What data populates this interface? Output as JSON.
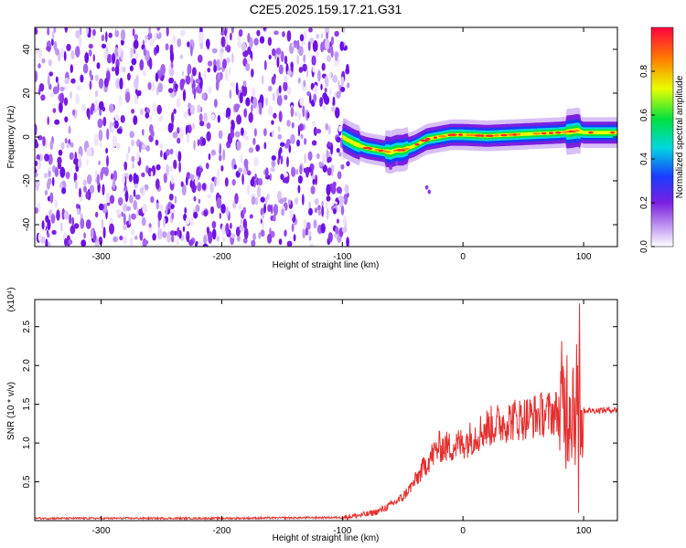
{
  "title": "C2E5.2025.159.17.21.G31",
  "colors": {
    "signal": "#e53030",
    "axis": "#000000",
    "noise": "#7a1fe0"
  },
  "chart_data": [
    {
      "type": "heatmap",
      "xlabel": "Height of straight line (km)",
      "ylabel": "Frequency (Hz)",
      "xlim": [
        -355,
        128
      ],
      "ylim": [
        -50,
        50
      ],
      "xticks": [
        -300,
        -200,
        -100,
        0,
        100
      ],
      "yticks": [
        -40,
        -20,
        0,
        20,
        40
      ],
      "colorbar": {
        "label": "Normalized spectral amplitude",
        "range": [
          0,
          1
        ],
        "ticks": [
          0.0,
          0.2,
          0.4,
          0.6,
          0.8
        ],
        "ticklabels": [
          "0.0",
          "0.2",
          "0.4",
          "0.6",
          "0.8"
        ]
      },
      "noise_region_x": [
        -355,
        -95
      ],
      "ridge": {
        "x": [
          -100,
          -90,
          -80,
          -70,
          -60,
          -55,
          -50,
          -40,
          -30,
          -20,
          -10,
          0,
          20,
          40,
          60,
          80,
          90,
          95,
          100,
          110,
          128
        ],
        "y": [
          0,
          -3,
          -5,
          -6,
          -7,
          -6,
          -6,
          -4,
          -1,
          0,
          1,
          1,
          0.5,
          1,
          1.5,
          2,
          2.5,
          3,
          2,
          2,
          2
        ]
      }
    },
    {
      "type": "line",
      "xlabel": "Height of straight line (km)",
      "ylabel": "SNR (10 * v/v)",
      "yscale_label": "(x10⁴)",
      "xlim": [
        -355,
        128
      ],
      "ylim": [
        0,
        2.85
      ],
      "xticks": [
        -300,
        -200,
        -100,
        0,
        100
      ],
      "yticks": [
        0.5,
        1.0,
        1.5,
        2.0,
        2.5
      ],
      "yticklabels": [
        "0.5",
        "1.0",
        "1.5",
        "2.0",
        "2.5"
      ],
      "series": [
        {
          "x": [
            -355,
            -300,
            -200,
            -100,
            -80,
            -70,
            -60,
            -50,
            -40,
            -30,
            -20,
            -10,
            0,
            10,
            20,
            30,
            40,
            50,
            60,
            70,
            80,
            85,
            90,
            95,
            100,
            110,
            128
          ],
          "y": [
            0.03,
            0.03,
            0.03,
            0.04,
            0.08,
            0.12,
            0.2,
            0.3,
            0.5,
            0.75,
            0.95,
            0.95,
            1.0,
            1.1,
            1.2,
            1.25,
            1.3,
            1.32,
            1.35,
            1.38,
            1.4,
            1.5,
            1.6,
            1.5,
            1.42,
            1.42,
            1.43
          ]
        }
      ]
    }
  ]
}
